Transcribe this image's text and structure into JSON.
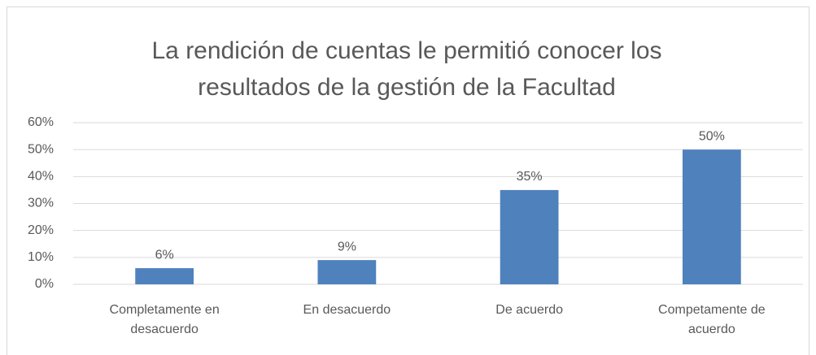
{
  "chart_data": {
    "type": "bar",
    "title": "La rendición de cuentas le permitió conocer los resultados de la gestión de la Facultad",
    "categories": [
      "Completamente en desacuerdo",
      "En desacuerdo",
      "De acuerdo",
      "Competamente de acuerdo"
    ],
    "values": [
      6,
      9,
      35,
      50
    ],
    "value_labels": [
      "6%",
      "9%",
      "35%",
      "50%"
    ],
    "color": "#4f81bd",
    "ylim": [
      0,
      60
    ],
    "yticks": [
      {
        "value": 0,
        "label": "0%"
      },
      {
        "value": 10,
        "label": "10%"
      },
      {
        "value": 20,
        "label": "20%"
      },
      {
        "value": 30,
        "label": "30%"
      },
      {
        "value": 40,
        "label": "40%"
      },
      {
        "value": 50,
        "label": "50%"
      },
      {
        "value": 60,
        "label": "60%"
      }
    ],
    "grid": true
  }
}
